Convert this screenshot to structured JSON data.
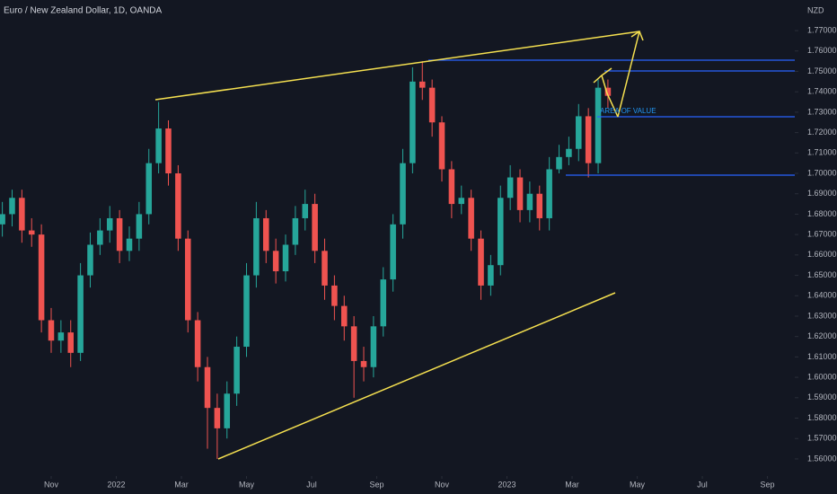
{
  "chart_data": {
    "type": "candlestick",
    "title": "Euro / New Zealand Dollar, 1D, OANDA",
    "y_axis_label": "NZD",
    "annotation": "AREA OF VALUE",
    "up_color": "#26a69a",
    "down_color": "#ef5350",
    "x": [
      -1.5,
      -1.2,
      -0.9,
      -0.6,
      -0.3,
      0,
      0.3,
      0.6,
      0.9,
      1.2,
      1.5,
      1.8,
      2.1,
      2.4,
      2.7,
      3,
      3.3,
      3.6,
      3.9,
      4.2,
      4.5,
      4.8,
      5.1,
      5.4,
      5.7,
      6,
      6.3,
      6.6,
      6.9,
      7.2,
      7.5,
      7.8,
      8.1,
      8.4,
      8.7,
      9,
      9.3,
      9.6,
      9.9,
      10.2,
      10.5,
      10.8,
      11.1,
      11.4,
      11.7,
      12,
      12.3,
      12.6,
      12.9,
      13.2,
      13.5,
      13.8,
      14.1,
      14.4,
      14.7,
      15,
      15.3,
      15.6,
      15.9,
      16.2,
      16.5,
      16.8,
      17.1
    ],
    "open": [
      1.675,
      1.68,
      1.688,
      1.672,
      1.67,
      1.628,
      1.618,
      1.622,
      1.612,
      1.65,
      1.665,
      1.672,
      1.678,
      1.662,
      1.668,
      1.68,
      1.705,
      1.722,
      1.7,
      1.668,
      1.628,
      1.605,
      1.585,
      1.575,
      1.592,
      1.615,
      1.65,
      1.678,
      1.662,
      1.652,
      1.665,
      1.678,
      1.685,
      1.662,
      1.645,
      1.635,
      1.625,
      1.608,
      1.605,
      1.625,
      1.648,
      1.675,
      1.705,
      1.745,
      1.742,
      1.725,
      1.702,
      1.685,
      1.688,
      1.668,
      1.645,
      1.655,
      1.688,
      1.698,
      1.682,
      1.69,
      1.678,
      1.702,
      1.708,
      1.712,
      1.728,
      1.705,
      1.742
    ],
    "high": [
      1.686,
      1.692,
      1.692,
      1.678,
      1.675,
      1.634,
      1.628,
      1.628,
      1.656,
      1.671,
      1.678,
      1.684,
      1.682,
      1.674,
      1.686,
      1.712,
      1.735,
      1.726,
      1.704,
      1.672,
      1.632,
      1.61,
      1.592,
      1.598,
      1.62,
      1.656,
      1.686,
      1.682,
      1.668,
      1.67,
      1.684,
      1.692,
      1.69,
      1.668,
      1.65,
      1.64,
      1.63,
      1.615,
      1.63,
      1.654,
      1.68,
      1.712,
      1.752,
      1.755,
      1.746,
      1.728,
      1.706,
      1.694,
      1.692,
      1.672,
      1.66,
      1.694,
      1.704,
      1.702,
      1.696,
      1.694,
      1.708,
      1.714,
      1.718,
      1.734,
      1.732,
      1.746,
      1.746
    ],
    "low": [
      1.669,
      1.674,
      1.666,
      1.664,
      1.622,
      1.612,
      1.612,
      1.605,
      1.608,
      1.644,
      1.66,
      1.666,
      1.656,
      1.657,
      1.662,
      1.675,
      1.7,
      1.694,
      1.662,
      1.622,
      1.598,
      1.565,
      1.56,
      1.57,
      1.586,
      1.61,
      1.644,
      1.656,
      1.646,
      1.647,
      1.66,
      1.672,
      1.656,
      1.638,
      1.628,
      1.618,
      1.59,
      1.598,
      1.6,
      1.62,
      1.642,
      1.668,
      1.7,
      1.736,
      1.718,
      1.696,
      1.678,
      1.68,
      1.662,
      1.638,
      1.64,
      1.65,
      1.682,
      1.676,
      1.676,
      1.672,
      1.672,
      1.7,
      1.704,
      1.706,
      1.698,
      1.7,
      1.732
    ],
    "close": [
      1.68,
      1.688,
      1.672,
      1.67,
      1.628,
      1.618,
      1.622,
      1.612,
      1.65,
      1.665,
      1.672,
      1.678,
      1.662,
      1.668,
      1.68,
      1.705,
      1.722,
      1.7,
      1.668,
      1.628,
      1.605,
      1.585,
      1.575,
      1.592,
      1.615,
      1.65,
      1.678,
      1.662,
      1.652,
      1.665,
      1.678,
      1.685,
      1.662,
      1.645,
      1.635,
      1.625,
      1.608,
      1.605,
      1.625,
      1.648,
      1.675,
      1.705,
      1.745,
      1.742,
      1.725,
      1.702,
      1.685,
      1.688,
      1.668,
      1.645,
      1.655,
      1.688,
      1.698,
      1.682,
      1.69,
      1.678,
      1.702,
      1.708,
      1.712,
      1.728,
      1.705,
      1.742,
      1.738
    ],
    "xlim": [
      -1.572,
      22.84
    ],
    "xticks": [
      {
        "value": 0,
        "label": "Nov"
      },
      {
        "value": 2,
        "label": "2022"
      },
      {
        "value": 4,
        "label": "Mar"
      },
      {
        "value": 6,
        "label": "May"
      },
      {
        "value": 8,
        "label": "Jul"
      },
      {
        "value": 10,
        "label": "Sep"
      },
      {
        "value": 12,
        "label": "Nov"
      },
      {
        "value": 14,
        "label": "2023"
      },
      {
        "value": 16,
        "label": "Mar"
      },
      {
        "value": 18,
        "label": "May"
      },
      {
        "value": 20,
        "label": "Jul"
      },
      {
        "value": 22,
        "label": "Sep"
      }
    ],
    "ylim": [
      1.5516,
      1.785
    ],
    "yticks": [
      {
        "value": 1.56,
        "label": "1.56000"
      },
      {
        "value": 1.57,
        "label": "1.57000"
      },
      {
        "value": 1.58,
        "label": "1.58000"
      },
      {
        "value": 1.59,
        "label": "1.59000"
      },
      {
        "value": 1.6,
        "label": "1.60000"
      },
      {
        "value": 1.61,
        "label": "1.61000"
      },
      {
        "value": 1.62,
        "label": "1.62000"
      },
      {
        "value": 1.63,
        "label": "1.63000"
      },
      {
        "value": 1.64,
        "label": "1.64000"
      },
      {
        "value": 1.65,
        "label": "1.65000"
      },
      {
        "value": 1.66,
        "label": "1.66000"
      },
      {
        "value": 1.67,
        "label": "1.67000"
      },
      {
        "value": 1.68,
        "label": "1.68000"
      },
      {
        "value": 1.69,
        "label": "1.69000"
      },
      {
        "value": 1.7,
        "label": "1.70000"
      },
      {
        "value": 1.71,
        "label": "1.71000"
      },
      {
        "value": 1.72,
        "label": "1.72000"
      },
      {
        "value": 1.73,
        "label": "1.73000"
      },
      {
        "value": 1.74,
        "label": "1.74000"
      },
      {
        "value": 1.75,
        "label": "1.75000"
      },
      {
        "value": 1.76,
        "label": "1.76000"
      },
      {
        "value": 1.77,
        "label": "1.77000"
      }
    ]
  }
}
